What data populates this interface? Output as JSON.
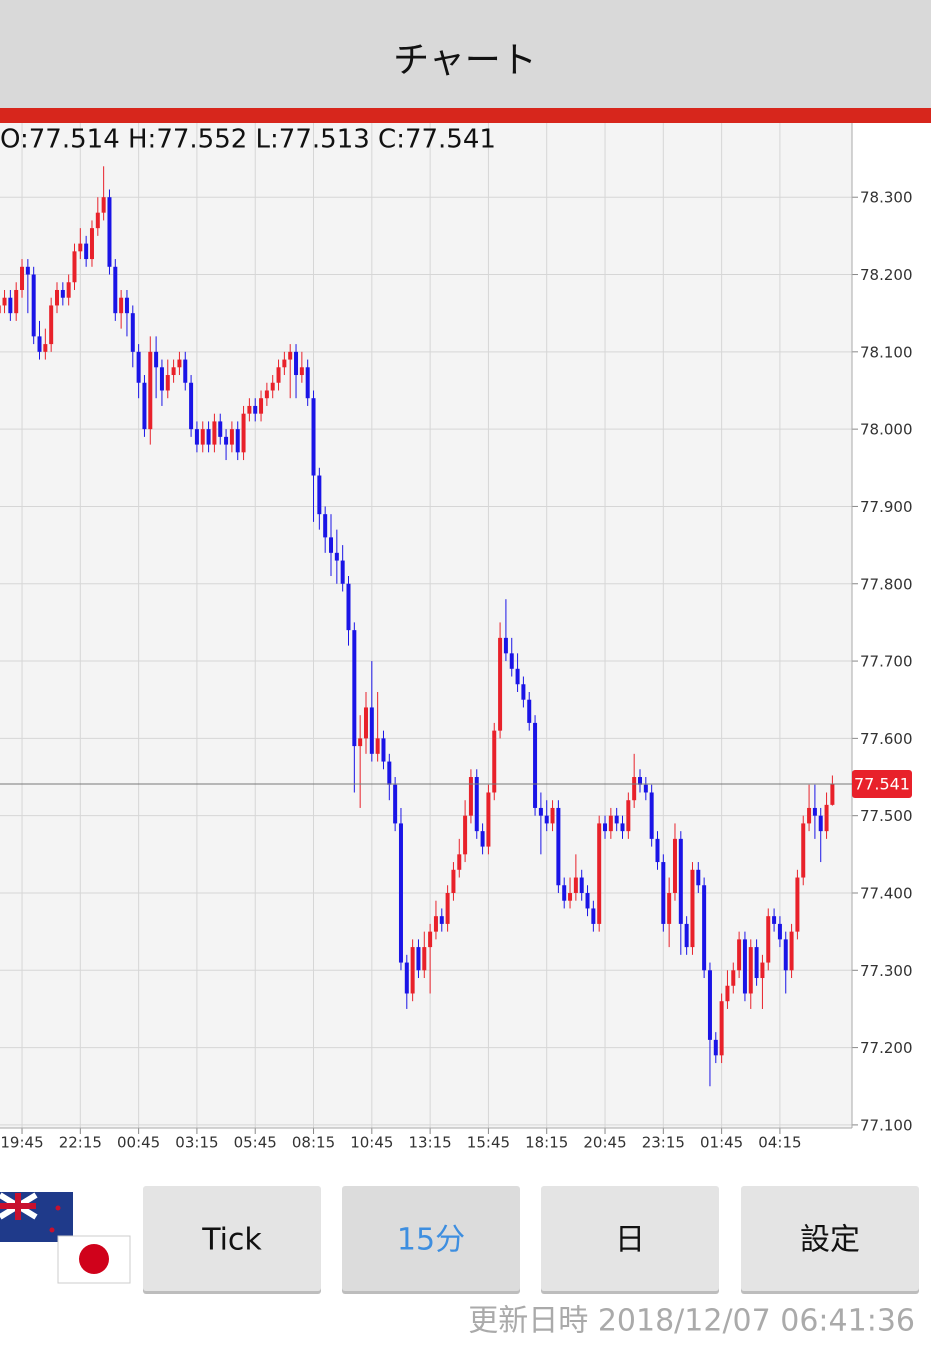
{
  "header": {
    "title": "チャート"
  },
  "chart_data": {
    "type": "candlestick",
    "ohlc_label": "O:77.514 H:77.552 L:77.513 C:77.541",
    "current_price": 77.541,
    "up_color": "#e8212a",
    "down_color": "#1a14e6",
    "grid": true,
    "ylim": [
      77.096,
      78.396
    ],
    "yticks": [
      {
        "value": 77.1,
        "label": "77.100"
      },
      {
        "value": 77.2,
        "label": "77.200"
      },
      {
        "value": 77.3,
        "label": "77.300"
      },
      {
        "value": 77.4,
        "label": "77.400"
      },
      {
        "value": 77.5,
        "label": "77.500"
      },
      {
        "value": 77.6,
        "label": "77.600"
      },
      {
        "value": 77.7,
        "label": "77.700"
      },
      {
        "value": 77.8,
        "label": "77.800"
      },
      {
        "value": 77.9,
        "label": "77.900"
      },
      {
        "value": 78.0,
        "label": "78.000"
      },
      {
        "value": 78.1,
        "label": "78.100"
      },
      {
        "value": 78.2,
        "label": "78.200"
      },
      {
        "value": 78.3,
        "label": "78.300"
      }
    ],
    "categories": [
      null,
      null,
      null,
      null,
      "19:45",
      null,
      null,
      null,
      null,
      null,
      null,
      null,
      null,
      null,
      "22:15",
      null,
      null,
      null,
      null,
      null,
      null,
      null,
      null,
      null,
      "00:45",
      null,
      null,
      null,
      null,
      null,
      null,
      null,
      null,
      null,
      "03:15",
      null,
      null,
      null,
      null,
      null,
      null,
      null,
      null,
      null,
      "05:45",
      null,
      null,
      null,
      null,
      null,
      null,
      null,
      null,
      null,
      "08:15",
      null,
      null,
      null,
      null,
      null,
      null,
      null,
      null,
      null,
      "10:45",
      null,
      null,
      null,
      null,
      null,
      null,
      null,
      null,
      null,
      "13:15",
      null,
      null,
      null,
      null,
      null,
      null,
      null,
      null,
      null,
      "15:45",
      null,
      null,
      null,
      null,
      null,
      null,
      null,
      null,
      null,
      "18:15",
      null,
      null,
      null,
      null,
      null,
      null,
      null,
      null,
      null,
      "20:45",
      null,
      null,
      null,
      null,
      null,
      null,
      null,
      null,
      null,
      "23:15",
      null,
      null,
      null,
      null,
      null,
      null,
      null,
      null,
      null,
      "01:45",
      null,
      null,
      null,
      null,
      null,
      null,
      null,
      null,
      null,
      "04:15",
      null,
      null,
      null,
      null,
      null,
      null,
      null,
      null,
      null
    ],
    "series": [
      {
        "open": [
          78.15,
          78.16,
          78.17,
          78.15,
          78.18,
          78.21,
          78.2,
          78.12,
          78.1,
          78.11,
          78.16,
          78.18,
          78.17,
          78.19,
          78.23,
          78.24,
          78.22,
          78.26,
          78.28,
          78.3,
          78.21,
          78.15,
          78.17,
          78.15,
          78.1,
          78.06,
          78.0,
          78.1,
          78.08,
          78.05,
          78.07,
          78.08,
          78.09,
          78.06,
          78.0,
          77.98,
          78.0,
          77.98,
          78.01,
          77.99,
          77.98,
          78.0,
          77.97,
          78.02,
          78.03,
          78.02,
          78.04,
          78.05,
          78.06,
          78.08,
          78.09,
          78.1,
          78.07,
          78.08,
          78.04,
          77.94,
          77.89,
          77.86,
          77.84,
          77.83,
          77.8,
          77.74,
          77.59,
          77.6,
          77.64,
          77.58,
          77.6,
          77.57,
          77.54,
          77.49,
          77.31,
          77.27,
          77.33,
          77.3,
          77.33,
          77.35,
          77.37,
          77.36,
          77.4,
          77.43,
          77.45,
          77.5,
          77.55,
          77.48,
          77.46,
          77.53,
          77.61,
          77.73,
          77.71,
          77.69,
          77.67,
          77.65,
          77.62,
          77.51,
          77.5,
          77.49,
          77.51,
          77.41,
          77.39,
          77.4,
          77.42,
          77.4,
          77.38,
          77.36,
          77.49,
          77.48,
          77.5,
          77.49,
          77.48,
          77.52,
          77.55,
          77.54,
          77.53,
          77.47,
          77.44,
          77.36,
          77.4,
          77.47,
          77.36,
          77.33,
          77.43,
          77.41,
          77.3,
          77.21,
          77.19,
          77.26,
          77.28,
          77.3,
          77.34,
          77.27,
          77.33,
          77.29,
          77.31,
          77.37,
          77.36,
          77.34,
          77.3,
          77.35,
          77.42,
          77.49,
          77.51,
          77.5,
          77.48,
          77.514
        ],
        "high": [
          78.17,
          78.18,
          78.18,
          78.19,
          78.22,
          78.22,
          78.21,
          78.14,
          78.13,
          78.17,
          78.19,
          78.19,
          78.2,
          78.24,
          78.26,
          78.25,
          78.27,
          78.3,
          78.34,
          78.31,
          78.22,
          78.18,
          78.18,
          78.16,
          78.11,
          78.07,
          78.12,
          78.12,
          78.09,
          78.09,
          78.09,
          78.1,
          78.1,
          78.07,
          78.01,
          78.01,
          78.01,
          78.02,
          78.02,
          78.0,
          78.01,
          78.01,
          78.03,
          78.04,
          78.04,
          78.05,
          78.06,
          78.07,
          78.09,
          78.1,
          78.11,
          78.11,
          78.1,
          78.09,
          78.05,
          77.95,
          77.9,
          77.89,
          77.87,
          77.85,
          77.81,
          77.75,
          77.63,
          77.66,
          77.7,
          77.66,
          77.61,
          77.58,
          77.55,
          77.51,
          77.32,
          77.34,
          77.34,
          77.35,
          77.36,
          77.39,
          77.38,
          77.41,
          77.44,
          77.47,
          77.52,
          77.56,
          77.56,
          77.49,
          77.54,
          77.62,
          77.75,
          77.78,
          77.73,
          77.71,
          77.68,
          77.66,
          77.63,
          77.53,
          77.52,
          77.52,
          77.52,
          77.42,
          77.42,
          77.45,
          77.43,
          77.41,
          77.39,
          77.5,
          77.5,
          77.51,
          77.51,
          77.5,
          77.53,
          77.58,
          77.56,
          77.55,
          77.54,
          77.48,
          77.45,
          77.42,
          77.49,
          77.48,
          77.37,
          77.44,
          77.44,
          77.42,
          77.31,
          77.22,
          77.27,
          77.3,
          77.31,
          77.35,
          77.35,
          77.34,
          77.34,
          77.32,
          77.38,
          77.38,
          77.37,
          77.35,
          77.36,
          77.43,
          77.5,
          77.54,
          77.54,
          77.51,
          77.53,
          77.552
        ],
        "low": [
          78.14,
          78.15,
          78.14,
          78.14,
          78.17,
          78.15,
          78.11,
          78.09,
          78.09,
          78.1,
          78.15,
          78.16,
          78.16,
          78.18,
          78.22,
          78.21,
          78.21,
          78.25,
          78.27,
          78.2,
          78.14,
          78.13,
          78.12,
          78.08,
          78.04,
          77.99,
          77.98,
          78.04,
          78.03,
          78.04,
          78.06,
          78.07,
          78.05,
          77.99,
          77.97,
          77.97,
          77.97,
          77.97,
          77.98,
          77.96,
          77.97,
          77.96,
          77.96,
          78.01,
          78.01,
          78.01,
          78.03,
          78.04,
          78.05,
          78.07,
          78.04,
          78.04,
          78.06,
          78.03,
          77.88,
          77.87,
          77.84,
          77.81,
          77.8,
          77.79,
          77.72,
          77.53,
          77.51,
          77.58,
          77.57,
          77.57,
          77.56,
          77.52,
          77.48,
          77.3,
          77.25,
          77.26,
          77.29,
          77.29,
          77.27,
          77.34,
          77.35,
          77.35,
          77.39,
          77.42,
          77.44,
          77.49,
          77.47,
          77.45,
          77.45,
          77.52,
          77.6,
          77.7,
          77.68,
          77.66,
          77.64,
          77.61,
          77.5,
          77.45,
          77.48,
          77.48,
          77.4,
          77.38,
          77.38,
          77.39,
          77.39,
          77.37,
          77.35,
          77.35,
          77.47,
          77.47,
          77.48,
          77.47,
          77.47,
          77.51,
          77.53,
          77.52,
          77.46,
          77.43,
          77.35,
          77.33,
          77.39,
          77.32,
          77.32,
          77.32,
          77.4,
          77.29,
          77.15,
          77.18,
          77.18,
          77.25,
          77.27,
          77.29,
          77.26,
          77.25,
          77.28,
          77.25,
          77.3,
          77.35,
          77.33,
          77.27,
          77.29,
          77.34,
          77.41,
          77.48,
          77.47,
          77.44,
          77.47,
          77.513
        ],
        "close": [
          78.16,
          78.17,
          78.15,
          78.18,
          78.21,
          78.2,
          78.12,
          78.1,
          78.11,
          78.16,
          78.18,
          78.17,
          78.19,
          78.23,
          78.24,
          78.22,
          78.26,
          78.28,
          78.3,
          78.21,
          78.15,
          78.17,
          78.15,
          78.1,
          78.06,
          78.0,
          78.1,
          78.08,
          78.05,
          78.07,
          78.08,
          78.09,
          78.06,
          78.0,
          77.98,
          78.0,
          77.98,
          78.01,
          77.99,
          77.98,
          78.0,
          77.97,
          78.02,
          78.03,
          78.02,
          78.04,
          78.05,
          78.06,
          78.08,
          78.09,
          78.1,
          78.07,
          78.08,
          78.04,
          77.94,
          77.89,
          77.86,
          77.84,
          77.83,
          77.8,
          77.74,
          77.59,
          77.6,
          77.64,
          77.58,
          77.6,
          77.57,
          77.54,
          77.49,
          77.31,
          77.27,
          77.33,
          77.3,
          77.33,
          77.35,
          77.37,
          77.36,
          77.4,
          77.43,
          77.45,
          77.5,
          77.55,
          77.48,
          77.46,
          77.53,
          77.61,
          77.73,
          77.71,
          77.69,
          77.67,
          77.65,
          77.62,
          77.51,
          77.5,
          77.49,
          77.51,
          77.41,
          77.39,
          77.4,
          77.42,
          77.4,
          77.38,
          77.36,
          77.49,
          77.48,
          77.5,
          77.49,
          77.48,
          77.52,
          77.55,
          77.54,
          77.53,
          77.47,
          77.44,
          77.36,
          77.4,
          77.47,
          77.36,
          77.33,
          77.43,
          77.41,
          77.3,
          77.21,
          77.19,
          77.26,
          77.28,
          77.3,
          77.34,
          77.27,
          77.33,
          77.29,
          77.31,
          77.37,
          77.36,
          77.34,
          77.3,
          77.35,
          77.42,
          77.49,
          77.51,
          77.5,
          77.48,
          77.514,
          77.541
        ]
      }
    ]
  },
  "buttons": [
    "Tick",
    "15分",
    "日",
    "設定"
  ],
  "footer": {
    "updated": "更新日時 2018/12/07 06:41:36"
  }
}
